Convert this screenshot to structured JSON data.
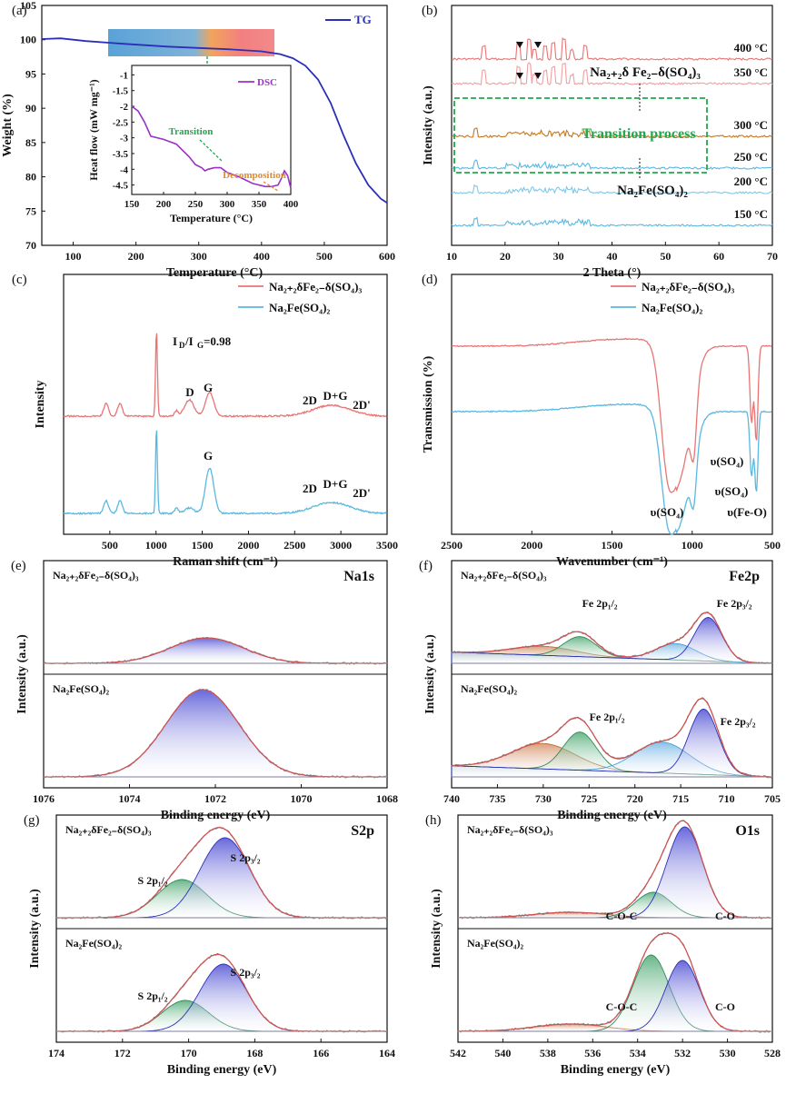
{
  "colors": {
    "blue": "#2b2fb8",
    "purple": "#9b30c4",
    "red": "#e87474",
    "cyan": "#5ab8e0",
    "orange": "#c8761e",
    "green": "#1faa4a",
    "peak_green": "#5fb58a",
    "peak_orange": "#d89a6a",
    "peak_blue": "#8fc6ea",
    "grey": "#888888"
  },
  "chart_data": [
    {
      "id": "a",
      "panel_label": "(a)",
      "type": "line",
      "xlabel": "Temperature (°C)",
      "ylabel": "Weight (%)",
      "xlim": [
        50,
        600
      ],
      "ylim": [
        70,
        105
      ],
      "xticks": [
        100,
        200,
        300,
        400,
        500,
        600
      ],
      "yticks": [
        70,
        75,
        80,
        85,
        90,
        95,
        100,
        105
      ],
      "series": [
        {
          "name": "TG",
          "color": "#2b2fb8",
          "x": [
            50,
            80,
            120,
            180,
            250,
            300,
            350,
            400,
            430,
            450,
            470,
            490,
            510,
            530,
            550,
            570,
            590,
            600
          ],
          "y": [
            100.1,
            100.2,
            99.8,
            99.4,
            99.0,
            98.8,
            98.6,
            98.3,
            97.9,
            97.3,
            96.2,
            94.2,
            90.8,
            86.2,
            82.0,
            78.8,
            76.8,
            76.2
          ]
        }
      ],
      "inset": {
        "xlabel": "Temperature (°C)",
        "ylabel": "Heat flow (mW mg⁻¹)",
        "xlim": [
          150,
          400
        ],
        "ylim": [
          -4.8,
          -0.7
        ],
        "xticks": [
          150,
          200,
          250,
          300,
          350,
          400
        ],
        "yticks": [
          -1.0,
          -1.5,
          -2.0,
          -2.5,
          -3.0,
          -3.5,
          -4.0,
          -4.5
        ],
        "series": [
          {
            "name": "DSC",
            "color": "#9b30c4",
            "x": [
              150,
              160,
              170,
              180,
              200,
              220,
              240,
              250,
              260,
              265,
              270,
              280,
              290,
              300,
              320,
              340,
              360,
              370,
              380,
              385,
              390,
              395,
              400
            ],
            "y": [
              -2.0,
              -2.15,
              -2.5,
              -2.95,
              -3.05,
              -3.2,
              -3.6,
              -3.85,
              -3.95,
              -4.05,
              -4.0,
              -3.95,
              -3.95,
              -4.1,
              -4.25,
              -4.45,
              -4.55,
              -4.55,
              -4.5,
              -4.3,
              -4.05,
              -4.2,
              -4.6
            ]
          }
        ],
        "annotations": [
          "Transition",
          "Decomposition"
        ]
      }
    },
    {
      "id": "b",
      "panel_label": "(b)",
      "type": "line",
      "xlabel": "2 Theta (°)",
      "ylabel": "Intensity (a.u.)",
      "xlim": [
        10,
        70
      ],
      "xticks": [
        10,
        20,
        30,
        40,
        50,
        60,
        70
      ],
      "series_labels": [
        "400 °C",
        "350 °C",
        "300 °C",
        "250 °C",
        "200 °C",
        "150 °C"
      ],
      "annotations": [
        "Na₂₊₂δ Fe₂₋δ(SO₄)₃",
        "Transition process",
        "Na₂Fe(SO₄)₂"
      ]
    },
    {
      "id": "c",
      "panel_label": "(c)",
      "type": "line",
      "xlabel": "Raman shift (cm⁻¹)",
      "ylabel": "Intensity",
      "xlim": [
        0,
        3500
      ],
      "xticks": [
        500,
        1000,
        1500,
        2000,
        2500,
        3000,
        3500
      ],
      "series": [
        {
          "name": "Na₂₊₂δFe₂₋δ(SO₄)₃",
          "color": "#e87474"
        },
        {
          "name": "Na₂Fe(SO₄)₂",
          "color": "#5ab8e0"
        }
      ],
      "annotations": [
        "I",
        "D",
        "/I",
        "G",
        "=0.98",
        "D",
        "G",
        "G",
        "2D",
        "D+G",
        "2D'",
        "2D",
        "D+G",
        "2D'"
      ]
    },
    {
      "id": "d",
      "panel_label": "(d)",
      "type": "line",
      "xlabel": "Wavenumber (cm⁻¹)",
      "ylabel": "Transmission (%)",
      "xlim": [
        2500,
        500
      ],
      "xticks": [
        2500,
        2000,
        1500,
        1000,
        500
      ],
      "series": [
        {
          "name": "Na₂₊₂δFe₂₋δ(SO₄)₃",
          "color": "#e87474"
        },
        {
          "name": "Na₂Fe(SO₄)₂",
          "color": "#5ab8e0"
        }
      ],
      "annotations": [
        "υ(SO₄)",
        "υ(SO₄)",
        "υ(SO₄)",
        "υ(Fe-O)"
      ]
    },
    {
      "id": "e",
      "panel_label": "(e)",
      "type": "line",
      "title": "Na1s",
      "xlabel": "Binding energy (eV)",
      "ylabel": "Intensity (a.u.)",
      "xlim": [
        1076,
        1068
      ],
      "xticks": [
        1076,
        1074,
        1072,
        1070,
        1068
      ],
      "subplots": [
        "Na₂₊₂δFe₂₋δ(SO₄)₃",
        "Na₂Fe(SO₄)₂"
      ]
    },
    {
      "id": "f",
      "panel_label": "(f)",
      "type": "line",
      "title": "Fe2p",
      "xlabel": "Binding energy (eV)",
      "ylabel": "Intensity (a.u.)",
      "xlim": [
        740,
        705
      ],
      "xticks": [
        740,
        735,
        730,
        725,
        720,
        715,
        710,
        705
      ],
      "subplots": [
        "Na₂₊₂δFe₂₋δ(SO₄)₃",
        "Na₂Fe(SO₄)₂"
      ],
      "annotations": [
        "Fe 2p₁/₂",
        "Fe 2p₃/₂"
      ]
    },
    {
      "id": "g",
      "panel_label": "(g)",
      "type": "line",
      "title": "S2p",
      "xlabel": "Binding energy (eV)",
      "ylabel": "Intensity (a.u.)",
      "xlim": [
        174,
        164
      ],
      "xticks": [
        174,
        172,
        170,
        168,
        166,
        164
      ],
      "subplots": [
        "Na₂₊₂δFe₂₋δ(SO₄)₃",
        "Na₂Fe(SO₄)₂"
      ],
      "annotations": [
        "S 2p₁/₂",
        "S 2p₃/₂"
      ]
    },
    {
      "id": "h",
      "panel_label": "(h)",
      "type": "line",
      "title": "O1s",
      "xlabel": "Binding energy (eV)",
      "ylabel": "Intensity (a.u.)",
      "xlim": [
        542,
        528
      ],
      "xticks": [
        542,
        540,
        538,
        536,
        534,
        532,
        530,
        528
      ],
      "subplots": [
        "Na₂₊₂δFe₂₋δ(SO₄)₃",
        "Na₂Fe(SO₄)₂"
      ],
      "annotations": [
        "C-O-C",
        "C-O"
      ]
    }
  ]
}
